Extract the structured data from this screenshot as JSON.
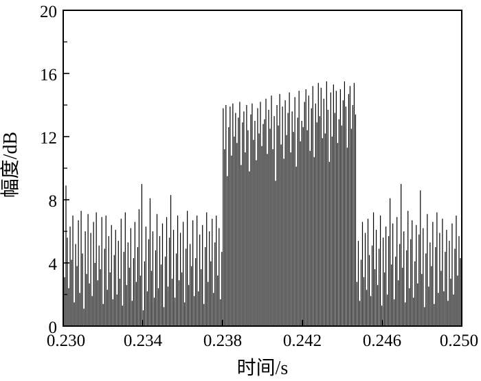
{
  "figure": {
    "background_color": "#ffffff",
    "axis_color": "#000000",
    "stem_color": "#000000"
  },
  "chart_data": {
    "type": "bar",
    "subtype": "dense-stem-signal-plot",
    "title": "",
    "xlabel": "时间/s",
    "ylabel": "幅度/dB",
    "xlim": [
      0.23,
      0.25
    ],
    "ylim": [
      0,
      20
    ],
    "xticks": [
      0.23,
      0.234,
      0.238,
      0.242,
      0.246,
      0.25
    ],
    "xtick_labels": [
      "0.230",
      "0.234",
      "0.238",
      "0.242",
      "0.246",
      "0.250"
    ],
    "yticks": [
      0,
      4,
      8,
      12,
      16,
      20
    ],
    "ytick_labels": [
      "0",
      "4",
      "8",
      "12",
      "16",
      "20"
    ],
    "minor_ytick_values": [
      2,
      6,
      10,
      14,
      18
    ],
    "grid": false,
    "legend": "none",
    "x_start": 0.23,
    "x_end": 0.25,
    "n_points": 290,
    "noise_floor_range_db": [
      0,
      9.0
    ],
    "burst_interval_s": [
      0.238,
      0.2447
    ],
    "burst_level_range_db": [
      9.2,
      15.5
    ],
    "amplitudes": [
      7.2,
      3.1,
      8.9,
      5.6,
      2.4,
      6.3,
      4.2,
      7.0,
      1.5,
      5.2,
      3.8,
      6.7,
      2.1,
      7.3,
      4.6,
      1.1,
      6.0,
      3.3,
      7.1,
      2.7,
      5.9,
      1.9,
      6.6,
      4.0,
      7.2,
      2.9,
      5.1,
      3.6,
      6.9,
      1.4,
      4.9,
      7.0,
      2.3,
      5.7,
      3.4,
      6.4,
      1.7,
      4.5,
      6.1,
      2.0,
      5.4,
      3.0,
      6.8,
      1.3,
      4.7,
      7.2,
      2.6,
      5.3,
      3.7,
      6.2,
      1.6,
      4.3,
      6.6,
      2.8,
      5.0,
      7.4,
      3.2,
      9.0,
      1.0,
      4.1,
      6.3,
      2.2,
      5.5,
      8.1,
      3.5,
      6.0,
      1.8,
      4.8,
      7.1,
      2.4,
      5.7,
      3.9,
      6.5,
      1.2,
      4.4,
      6.9,
      2.5,
      5.6,
      8.3,
      3.0,
      6.1,
      1.8,
      4.6,
      7.0,
      2.9,
      5.9,
      3.4,
      6.6,
      1.5,
      4.9,
      7.3,
      2.6,
      5.2,
      3.8,
      6.7,
      1.9,
      4.3,
      7.0,
      2.2,
      5.8,
      3.6,
      6.4,
      1.4,
      5.0,
      7.2,
      2.8,
      6.0,
      4.1,
      6.8,
      2.1,
      5.3,
      7.0,
      3.2,
      6.2,
      1.7,
      4.7,
      13.8,
      11.2,
      14.0,
      9.5,
      12.6,
      13.9,
      10.8,
      14.1,
      12.0,
      13.5,
      11.6,
      13.2,
      14.2,
      10.2,
      12.9,
      13.6,
      11.0,
      14.0,
      12.4,
      9.8,
      13.4,
      14.1,
      11.8,
      13.0,
      10.5,
      13.8,
      12.2,
      14.2,
      11.4,
      12.8,
      13.1,
      14.4,
      10.9,
      13.7,
      12.5,
      14.6,
      11.2,
      13.3,
      9.2,
      14.0,
      12.7,
      14.7,
      11.5,
      13.9,
      10.6,
      14.3,
      12.1,
      13.5,
      14.8,
      11.0,
      13.6,
      12.3,
      14.5,
      10.1,
      13.2,
      14.9,
      11.7,
      13.0,
      12.6,
      14.2,
      15.0,
      12.4,
      14.6,
      11.1,
      13.8,
      15.2,
      10.7,
      14.1,
      12.9,
      15.4,
      13.3,
      15.1,
      11.9,
      14.4,
      12.2,
      15.5,
      13.7,
      10.4,
      14.8,
      12.0,
      15.3,
      13.5,
      14.9,
      11.6,
      13.1,
      15.0,
      12.7,
      14.3,
      15.5,
      13.9,
      11.3,
      14.7,
      15.2,
      12.5,
      14.0,
      15.4,
      13.4,
      2.8,
      5.4,
      1.6,
      4.2,
      6.6,
      3.1,
      5.9,
      2.3,
      6.8,
      4.5,
      1.9,
      5.1,
      7.2,
      3.6,
      6.1,
      2.6,
      4.9,
      7.0,
      1.3,
      5.6,
      3.4,
      6.3,
      2.0,
      5.7,
      8.1,
      3.9,
      6.5,
      1.7,
      4.4,
      6.9,
      2.9,
      5.2,
      9.0,
      3.7,
      6.0,
      1.5,
      4.8,
      7.3,
      2.4,
      5.5,
      6.7,
      1.8,
      4.1,
      6.4,
      2.7,
      5.8,
      8.6,
      3.3,
      6.2,
      1.2,
      4.6,
      7.1,
      2.5,
      5.3,
      3.8,
      6.6,
      1.4,
      5.0,
      7.2,
      2.1,
      5.9,
      3.5,
      6.8,
      2.2,
      4.7,
      6.1,
      1.6,
      5.4,
      3.0,
      6.5,
      2.0,
      4.9,
      7.0,
      3.2,
      5.7,
      4.3,
      6.0
    ]
  }
}
